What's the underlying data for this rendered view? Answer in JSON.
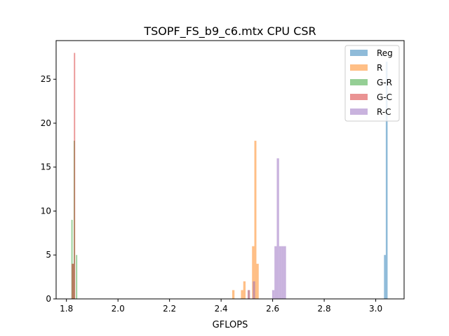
{
  "chart_data": {
    "type": "histogram",
    "title": "TSOPF_FS_b9_c6.mtx CPU CSR",
    "xlabel": "GFLOPS",
    "ylabel": "",
    "xlim": [
      1.76,
      3.11
    ],
    "ylim": [
      0,
      29.4
    ],
    "xticks": [
      1.8,
      2.0,
      2.2,
      2.4,
      2.6,
      2.8,
      3.0
    ],
    "xtick_labels": [
      "1.8",
      "2.0",
      "2.2",
      "2.4",
      "2.6",
      "2.8",
      "3.0"
    ],
    "yticks": [
      0,
      5,
      10,
      15,
      20,
      25
    ],
    "ytick_labels": [
      "0",
      "5",
      "10",
      "15",
      "20",
      "25"
    ],
    "legend_position": "top-right",
    "series": [
      {
        "name": "Reg",
        "color": "#1f77b4",
        "bins": [
          {
            "x0": 3.032,
            "x1": 3.039,
            "count": 5
          },
          {
            "x0": 3.039,
            "x1": 3.046,
            "count": 27
          }
        ]
      },
      {
        "name": "R",
        "color": "#ff7f0e",
        "bins": [
          {
            "x0": 2.443,
            "x1": 2.452,
            "count": 1
          },
          {
            "x0": 2.477,
            "x1": 2.486,
            "count": 1
          },
          {
            "x0": 2.486,
            "x1": 2.495,
            "count": 2
          },
          {
            "x0": 2.503,
            "x1": 2.512,
            "count": 1
          },
          {
            "x0": 2.52,
            "x1": 2.529,
            "count": 6
          },
          {
            "x0": 2.529,
            "x1": 2.537,
            "count": 18
          },
          {
            "x0": 2.537,
            "x1": 2.546,
            "count": 4
          }
        ]
      },
      {
        "name": "G-R",
        "color": "#2ca02c",
        "bins": [
          {
            "x0": 1.819,
            "x1": 1.824,
            "count": 9
          },
          {
            "x0": 1.824,
            "x1": 1.828,
            "count": 4
          },
          {
            "x0": 1.828,
            "x1": 1.833,
            "count": 18
          },
          {
            "x0": 1.837,
            "x1": 1.842,
            "count": 5
          }
        ]
      },
      {
        "name": "G-C",
        "color": "#d62728",
        "bins": [
          {
            "x0": 1.82,
            "x1": 1.825,
            "count": 4
          },
          {
            "x0": 1.825,
            "x1": 1.829,
            "count": 4
          },
          {
            "x0": 1.829,
            "x1": 1.834,
            "count": 28
          }
        ]
      },
      {
        "name": "R-C",
        "color": "#9467bd",
        "bins": [
          {
            "x0": 2.503,
            "x1": 2.512,
            "count": 1
          },
          {
            "x0": 2.523,
            "x1": 2.532,
            "count": 2
          },
          {
            "x0": 2.598,
            "x1": 2.607,
            "count": 1
          },
          {
            "x0": 2.607,
            "x1": 2.616,
            "count": 6
          },
          {
            "x0": 2.616,
            "x1": 2.625,
            "count": 16
          },
          {
            "x0": 2.625,
            "x1": 2.634,
            "count": 6
          },
          {
            "x0": 2.634,
            "x1": 2.643,
            "count": 6
          },
          {
            "x0": 2.643,
            "x1": 2.652,
            "count": 6
          }
        ]
      }
    ]
  }
}
